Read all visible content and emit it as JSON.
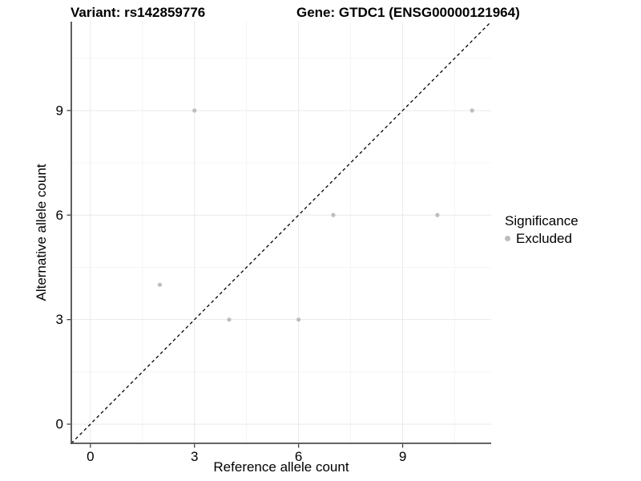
{
  "chart_data": {
    "type": "scatter",
    "title_left": "Variant: rs142859776",
    "title_right": "Gene: GTDC1 (ENSG00000121964)",
    "xlabel": "Reference allele count",
    "ylabel": "Alternative allele count",
    "xlim": [
      -0.55,
      11.55
    ],
    "ylim": [
      -0.55,
      11.55
    ],
    "x_ticks": [
      0,
      3,
      6,
      9
    ],
    "y_ticks": [
      0,
      3,
      6,
      9
    ],
    "x_minor_ticks": [
      1.5,
      4.5,
      7.5,
      10.5
    ],
    "y_minor_ticks": [
      1.5,
      4.5,
      7.5,
      10.5
    ],
    "grid": true,
    "legend_position": "right",
    "legend": {
      "title": "Significance",
      "items": [
        {
          "label": "Excluded",
          "color": "#bdbdbd"
        }
      ]
    },
    "series": [
      {
        "name": "Excluded",
        "color": "#bdbdbd",
        "points": [
          [
            2,
            4
          ],
          [
            3,
            9
          ],
          [
            4,
            3
          ],
          [
            6,
            3
          ],
          [
            7,
            6
          ],
          [
            10,
            6
          ],
          [
            11,
            9
          ]
        ]
      }
    ],
    "reference_line": {
      "type": "identity",
      "equation": "y = x",
      "style": "dashed",
      "color": "#000000"
    }
  },
  "colors": {
    "background": "#ffffff",
    "point": "#bdbdbd",
    "grid_major": "#e9e9e9",
    "grid_minor": "#f4f4f4",
    "axis_line": "#4d4d4d",
    "tick_mark": "#333333",
    "tick_text": "#000000",
    "reference_line": "#000000"
  }
}
